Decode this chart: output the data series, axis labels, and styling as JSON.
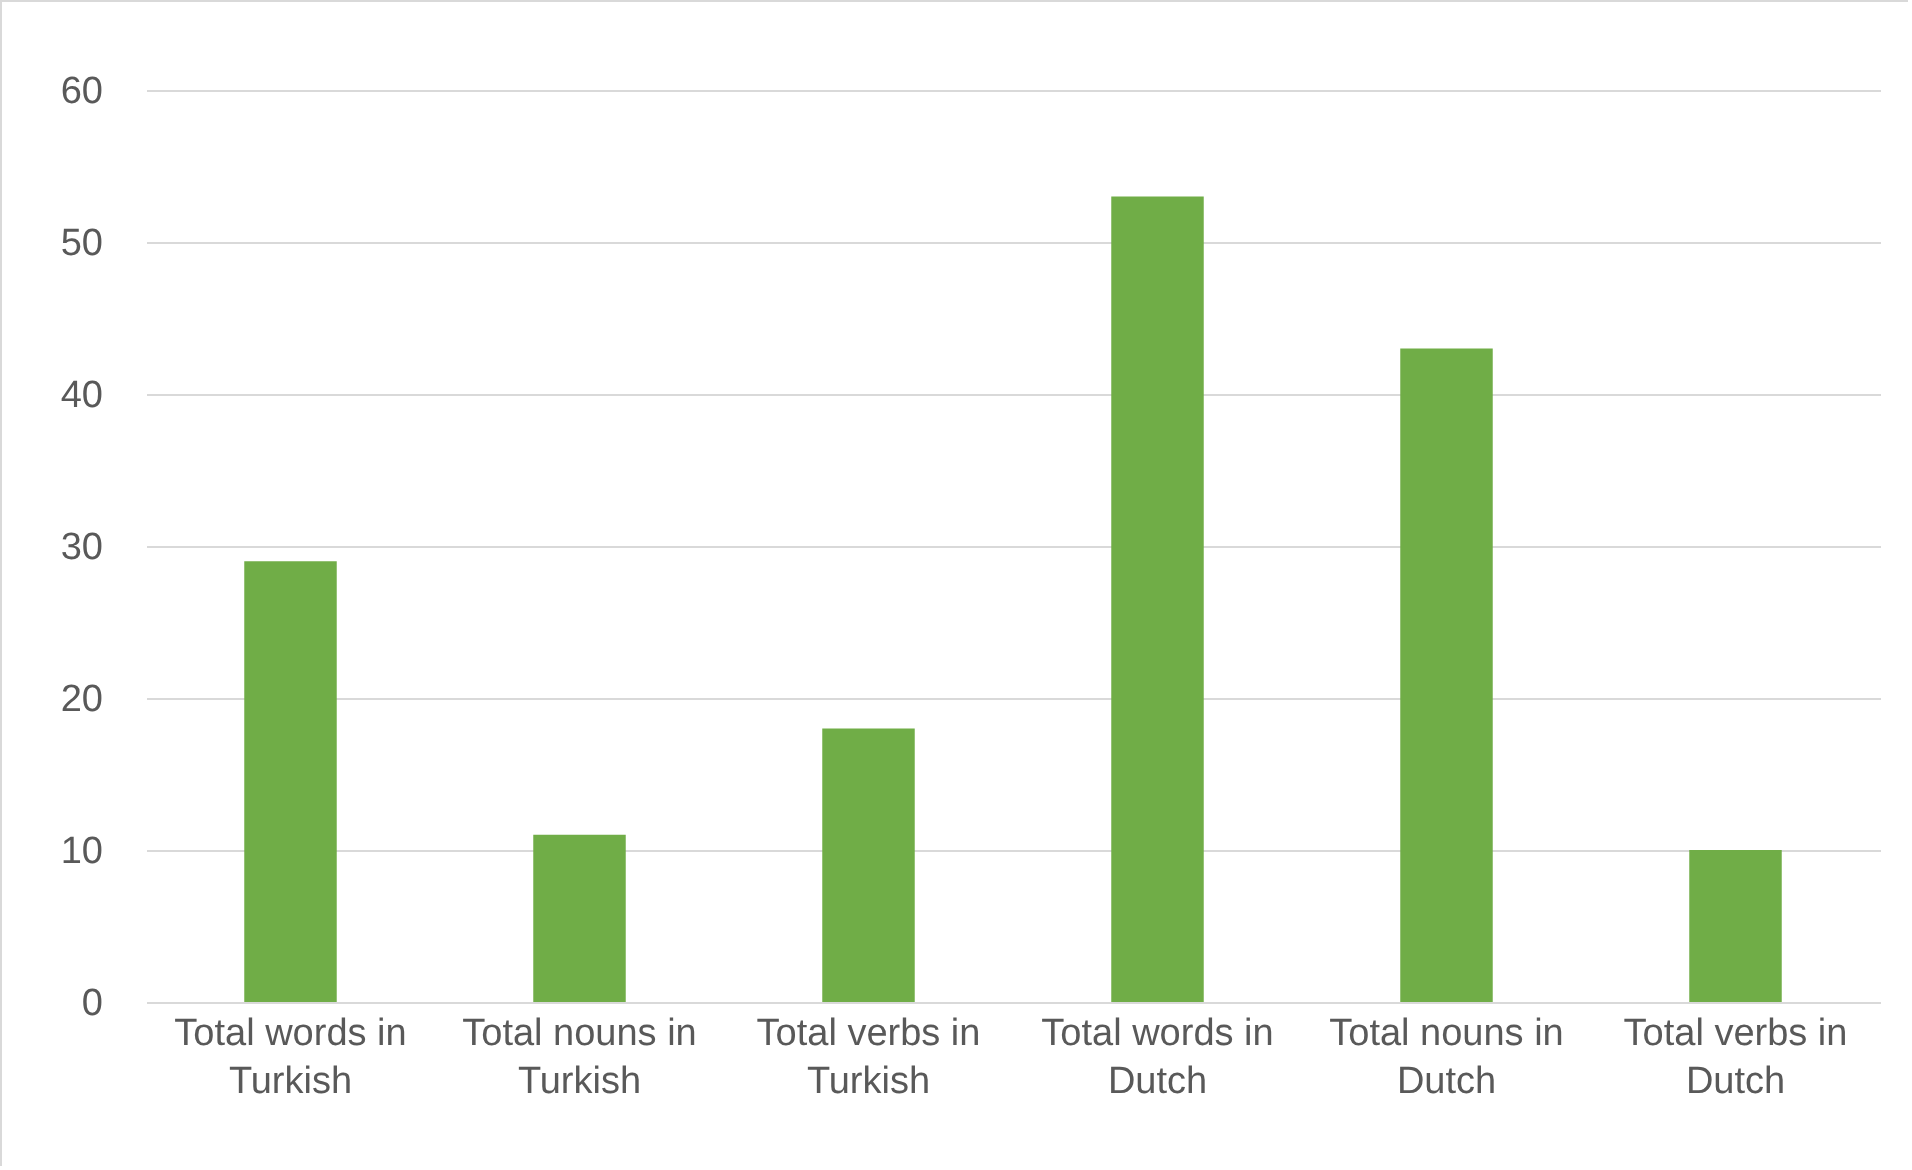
{
  "chart_data": {
    "type": "bar",
    "categories": [
      "Total words in Turkish",
      "Total nouns in Turkish",
      "Total verbs in Turkish",
      "Total words in Dutch",
      "Total nouns in Dutch",
      "Total verbs in Dutch"
    ],
    "values": [
      29,
      11,
      18,
      53,
      43,
      10
    ],
    "color": "#70ad47",
    "ylim": [
      0,
      60
    ],
    "yticks": [
      0,
      10,
      20,
      30,
      40,
      50,
      60
    ],
    "grid": "y"
  }
}
